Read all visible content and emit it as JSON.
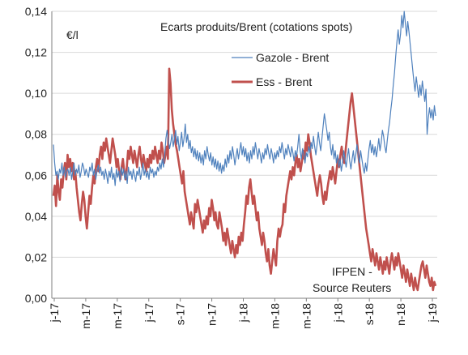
{
  "chart_data": {
    "type": "line",
    "title": "Ecarts produits/Brent (cotations spots)",
    "unit_label": "€/l",
    "source_note_line1": "IFPEN -",
    "source_note_line2": "Source Reuters",
    "ylim": [
      0,
      0.14
    ],
    "y_ticks": [
      "0,00",
      "0,02",
      "0,04",
      "0,06",
      "0,08",
      "0,10",
      "0,12",
      "0,14"
    ],
    "x_ticks": [
      "j-17",
      "m-17",
      "m-17",
      "j-17",
      "s-17",
      "n-17",
      "j-18",
      "m-18",
      "m-18",
      "j-18",
      "s-18",
      "n-18",
      "j-19"
    ],
    "legend_position": "top-right",
    "series": [
      {
        "name": "Gazole - Brent",
        "color": "#4f81bd",
        "values": [
          0.075,
          0.066,
          0.06,
          0.062,
          0.058,
          0.063,
          0.061,
          0.066,
          0.06,
          0.064,
          0.059,
          0.062,
          0.063,
          0.06,
          0.064,
          0.058,
          0.062,
          0.066,
          0.06,
          0.063,
          0.061,
          0.065,
          0.059,
          0.062,
          0.066,
          0.064,
          0.06,
          0.063,
          0.061,
          0.059,
          0.064,
          0.062,
          0.066,
          0.06,
          0.063,
          0.058,
          0.062,
          0.065,
          0.061,
          0.064,
          0.06,
          0.062,
          0.058,
          0.063,
          0.06,
          0.056,
          0.062,
          0.059,
          0.064,
          0.058,
          0.061,
          0.055,
          0.063,
          0.059,
          0.062,
          0.057,
          0.064,
          0.06,
          0.063,
          0.058,
          0.062,
          0.056,
          0.064,
          0.06,
          0.062,
          0.058,
          0.063,
          0.06,
          0.057,
          0.062,
          0.06,
          0.064,
          0.058,
          0.061,
          0.066,
          0.06,
          0.063,
          0.059,
          0.062,
          0.058,
          0.064,
          0.061,
          0.063,
          0.059,
          0.062,
          0.06,
          0.064,
          0.062,
          0.066,
          0.063,
          0.068,
          0.064,
          0.07,
          0.078,
          0.082,
          0.077,
          0.073,
          0.076,
          0.08,
          0.074,
          0.078,
          0.082,
          0.075,
          0.079,
          0.072,
          0.076,
          0.081,
          0.074,
          0.078,
          0.085,
          0.076,
          0.08,
          0.073,
          0.077,
          0.071,
          0.074,
          0.069,
          0.073,
          0.068,
          0.072,
          0.067,
          0.071,
          0.066,
          0.07,
          0.065,
          0.072,
          0.068,
          0.074,
          0.07,
          0.067,
          0.071,
          0.065,
          0.069,
          0.064,
          0.068,
          0.063,
          0.067,
          0.062,
          0.066,
          0.061,
          0.065,
          0.062,
          0.068,
          0.064,
          0.07,
          0.066,
          0.072,
          0.068,
          0.074,
          0.07,
          0.065,
          0.069,
          0.073,
          0.068,
          0.072,
          0.076,
          0.07,
          0.074,
          0.069,
          0.073,
          0.067,
          0.071,
          0.066,
          0.072,
          0.068,
          0.074,
          0.07,
          0.076,
          0.072,
          0.068,
          0.073,
          0.07,
          0.066,
          0.071,
          0.068,
          0.073,
          0.07,
          0.075,
          0.071,
          0.068,
          0.073,
          0.07,
          0.066,
          0.071,
          0.068,
          0.072,
          0.069,
          0.074,
          0.071,
          0.076,
          0.072,
          0.068,
          0.073,
          0.07,
          0.075,
          0.072,
          0.069,
          0.074,
          0.071,
          0.067,
          0.072,
          0.069,
          0.074,
          0.08,
          0.072,
          0.068,
          0.073,
          0.07,
          0.066,
          0.071,
          0.069,
          0.074,
          0.071,
          0.076,
          0.073,
          0.079,
          0.074,
          0.07,
          0.075,
          0.081,
          0.076,
          0.072,
          0.078,
          0.084,
          0.09,
          0.086,
          0.082,
          0.077,
          0.081,
          0.074,
          0.07,
          0.075,
          0.068,
          0.072,
          0.066,
          0.07,
          0.064,
          0.068,
          0.062,
          0.066,
          0.072,
          0.068,
          0.064,
          0.069,
          0.073,
          0.067,
          0.063,
          0.068,
          0.072,
          0.066,
          0.07,
          0.075,
          0.07,
          0.066,
          0.072,
          0.068,
          0.064,
          0.061,
          0.066,
          0.062,
          0.068,
          0.073,
          0.077,
          0.071,
          0.075,
          0.07,
          0.074,
          0.069,
          0.073,
          0.078,
          0.072,
          0.076,
          0.082,
          0.079,
          0.074,
          0.071,
          0.077,
          0.082,
          0.086,
          0.092,
          0.097,
          0.104,
          0.11,
          0.118,
          0.125,
          0.131,
          0.124,
          0.129,
          0.138,
          0.132,
          0.14,
          0.134,
          0.128,
          0.135,
          0.13,
          0.124,
          0.118,
          0.112,
          0.106,
          0.101,
          0.108,
          0.103,
          0.098,
          0.104,
          0.099,
          0.106,
          0.101,
          0.096,
          0.102,
          0.08,
          0.088,
          0.093,
          0.088,
          0.092,
          0.087,
          0.094,
          0.089
        ]
      },
      {
        "name": "Ess - Brent",
        "color": "#c0504d",
        "values": [
          0.05,
          0.055,
          0.045,
          0.06,
          0.052,
          0.048,
          0.058,
          0.054,
          0.062,
          0.066,
          0.058,
          0.07,
          0.064,
          0.068,
          0.062,
          0.066,
          0.058,
          0.062,
          0.054,
          0.048,
          0.042,
          0.038,
          0.046,
          0.052,
          0.048,
          0.04,
          0.034,
          0.042,
          0.05,
          0.046,
          0.054,
          0.06,
          0.056,
          0.064,
          0.068,
          0.062,
          0.07,
          0.074,
          0.068,
          0.076,
          0.072,
          0.078,
          0.074,
          0.07,
          0.066,
          0.072,
          0.078,
          0.074,
          0.07,
          0.064,
          0.068,
          0.062,
          0.058,
          0.064,
          0.068,
          0.062,
          0.058,
          0.064,
          0.072,
          0.068,
          0.074,
          0.07,
          0.066,
          0.072,
          0.068,
          0.064,
          0.07,
          0.074,
          0.068,
          0.064,
          0.07,
          0.066,
          0.062,
          0.068,
          0.064,
          0.07,
          0.066,
          0.072,
          0.068,
          0.074,
          0.07,
          0.066,
          0.072,
          0.068,
          0.076,
          0.072,
          0.066,
          0.07,
          0.074,
          0.068,
          0.112,
          0.105,
          0.092,
          0.085,
          0.08,
          0.075,
          0.072,
          0.068,
          0.064,
          0.06,
          0.056,
          0.062,
          0.052,
          0.048,
          0.044,
          0.04,
          0.036,
          0.042,
          0.038,
          0.034,
          0.046,
          0.042,
          0.048,
          0.044,
          0.04,
          0.036,
          0.032,
          0.038,
          0.034,
          0.04,
          0.036,
          0.044,
          0.04,
          0.048,
          0.044,
          0.038,
          0.042,
          0.036,
          0.034,
          0.042,
          0.038,
          0.034,
          0.028,
          0.032,
          0.026,
          0.034,
          0.03,
          0.026,
          0.022,
          0.028,
          0.024,
          0.02,
          0.026,
          0.022,
          0.03,
          0.026,
          0.032,
          0.028,
          0.036,
          0.042,
          0.05,
          0.046,
          0.054,
          0.058,
          0.052,
          0.046,
          0.05,
          0.044,
          0.038,
          0.042,
          0.034,
          0.03,
          0.026,
          0.032,
          0.028,
          0.022,
          0.018,
          0.024,
          0.016,
          0.012,
          0.018,
          0.024,
          0.02,
          0.016,
          0.028,
          0.034,
          0.03,
          0.034,
          0.036,
          0.046,
          0.042,
          0.05,
          0.054,
          0.058,
          0.062,
          0.058,
          0.064,
          0.06,
          0.066,
          0.07,
          0.064,
          0.068,
          0.062,
          0.066,
          0.072,
          0.068,
          0.076,
          0.072,
          0.08,
          0.076,
          0.07,
          0.066,
          0.062,
          0.058,
          0.054,
          0.05,
          0.056,
          0.06,
          0.056,
          0.05,
          0.046,
          0.052,
          0.048,
          0.054,
          0.058,
          0.062,
          0.058,
          0.064,
          0.06,
          0.056,
          0.062,
          0.068,
          0.064,
          0.07,
          0.074,
          0.068,
          0.066,
          0.072,
          0.078,
          0.084,
          0.09,
          0.096,
          0.1,
          0.094,
          0.088,
          0.082,
          0.076,
          0.07,
          0.064,
          0.058,
          0.052,
          0.046,
          0.04,
          0.034,
          0.03,
          0.026,
          0.022,
          0.018,
          0.024,
          0.02,
          0.016,
          0.022,
          0.018,
          0.014,
          0.02,
          0.016,
          0.012,
          0.018,
          0.014,
          0.02,
          0.016,
          0.012,
          0.018,
          0.022,
          0.018,
          0.014,
          0.02,
          0.016,
          0.022,
          0.018,
          0.014,
          0.01,
          0.016,
          0.012,
          0.008,
          0.014,
          0.01,
          0.006,
          0.012,
          0.008,
          0.004,
          0.01,
          0.006,
          0.004,
          0.008,
          0.012,
          0.016,
          0.018,
          0.014,
          0.01,
          0.016,
          0.012,
          0.008,
          0.006,
          0.01,
          0.004,
          0.008,
          0.006
        ]
      }
    ]
  }
}
